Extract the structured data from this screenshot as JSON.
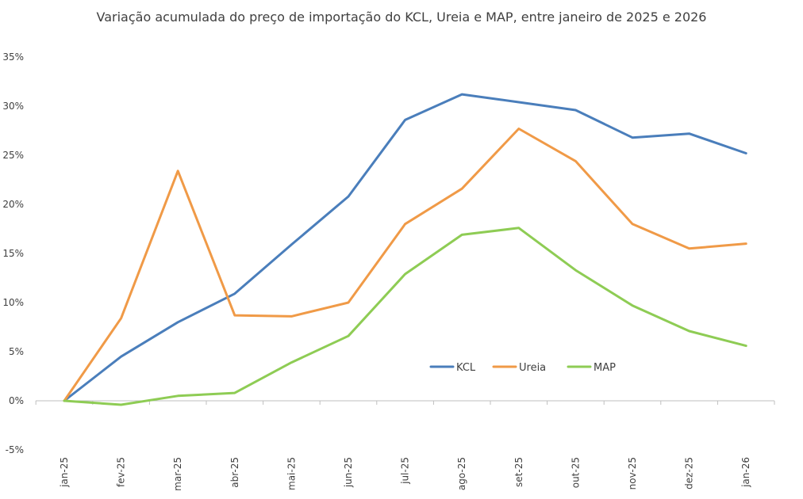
{
  "chart_data": {
    "type": "line",
    "title": "Variação acumulada do preço de importação do KCL, Ureia e MAP, entre janeiro de 2025 e 2026",
    "xlabel": "",
    "ylabel": "",
    "categories": [
      "jan-25",
      "fev-25",
      "mar-25",
      "abr-25",
      "mai-25",
      "jun-25",
      "jul-25",
      "ago-25",
      "set-25",
      "out-25",
      "nov-25",
      "dez-25",
      "jan-26"
    ],
    "ylim": [
      -5,
      35
    ],
    "yticks": [
      -5,
      0,
      5,
      10,
      15,
      20,
      25,
      30,
      35
    ],
    "ytick_labels": [
      "-5%",
      "0%",
      "5%",
      "10%",
      "15%",
      "20%",
      "25%",
      "30%",
      "35%"
    ],
    "grid": false,
    "legend_position": "center-right",
    "series": [
      {
        "name": "KCL",
        "color": "#4a7ebb",
        "values": [
          0,
          4.5,
          8.0,
          10.9,
          15.9,
          20.8,
          28.6,
          31.2,
          30.4,
          29.6,
          26.8,
          27.2,
          25.2
        ]
      },
      {
        "name": "Ureia",
        "color": "#f09a47",
        "values": [
          0,
          8.4,
          23.4,
          8.7,
          8.6,
          10.0,
          18.0,
          21.6,
          27.7,
          24.4,
          18.0,
          15.5,
          16.0
        ]
      },
      {
        "name": "MAP",
        "color": "#8ecc54",
        "values": [
          0,
          -0.4,
          0.5,
          0.8,
          3.9,
          6.6,
          12.9,
          16.9,
          17.6,
          13.3,
          9.7,
          7.1,
          5.6
        ]
      }
    ]
  }
}
